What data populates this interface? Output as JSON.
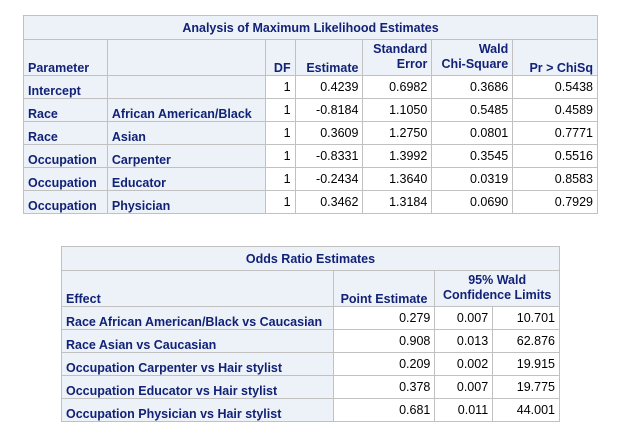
{
  "mle": {
    "title": "Analysis of Maximum Likelihood Estimates",
    "headers": {
      "parameter": "Parameter",
      "df": "DF",
      "estimate": "Estimate",
      "stderr_line1": "Standard",
      "stderr_line2": "Error",
      "wald_line1": "Wald",
      "wald_line2": "Chi-Square",
      "p": "Pr > ChiSq"
    },
    "rows": [
      {
        "param": "Intercept",
        "level": "",
        "df": "1",
        "estimate": "0.4239",
        "stderr": "0.6982",
        "wald": "0.3686",
        "p": "0.5438"
      },
      {
        "param": "Race",
        "level": "African American/Black",
        "df": "1",
        "estimate": "-0.8184",
        "stderr": "1.1050",
        "wald": "0.5485",
        "p": "0.4589"
      },
      {
        "param": "Race",
        "level": "Asian",
        "df": "1",
        "estimate": "0.3609",
        "stderr": "1.2750",
        "wald": "0.0801",
        "p": "0.7771"
      },
      {
        "param": "Occupation",
        "level": "Carpenter",
        "df": "1",
        "estimate": "-0.8331",
        "stderr": "1.3992",
        "wald": "0.3545",
        "p": "0.5516"
      },
      {
        "param": "Occupation",
        "level": "Educator",
        "df": "1",
        "estimate": "-0.2434",
        "stderr": "1.3640",
        "wald": "0.0319",
        "p": "0.8583"
      },
      {
        "param": "Occupation",
        "level": "Physician",
        "df": "1",
        "estimate": "0.3462",
        "stderr": "1.3184",
        "wald": "0.0690",
        "p": "0.7929"
      }
    ]
  },
  "odds": {
    "title": "Odds Ratio Estimates",
    "headers": {
      "effect": "Effect",
      "point": "Point Estimate",
      "ci_line1": "95% Wald",
      "ci_line2": "Confidence Limits"
    },
    "rows": [
      {
        "effect": "Race African American/Black vs Caucasian",
        "point": "0.279",
        "lower": "0.007",
        "upper": "10.701"
      },
      {
        "effect": "Race Asian vs Caucasian",
        "point": "0.908",
        "lower": "0.013",
        "upper": "62.876"
      },
      {
        "effect": "Occupation Carpenter vs Hair stylist",
        "point": "0.209",
        "lower": "0.002",
        "upper": "19.915"
      },
      {
        "effect": "Occupation Educator vs Hair stylist",
        "point": "0.378",
        "lower": "0.007",
        "upper": "19.775"
      },
      {
        "effect": "Occupation Physician vs Hair stylist",
        "point": "0.681",
        "lower": "0.011",
        "upper": "44.001"
      }
    ]
  }
}
